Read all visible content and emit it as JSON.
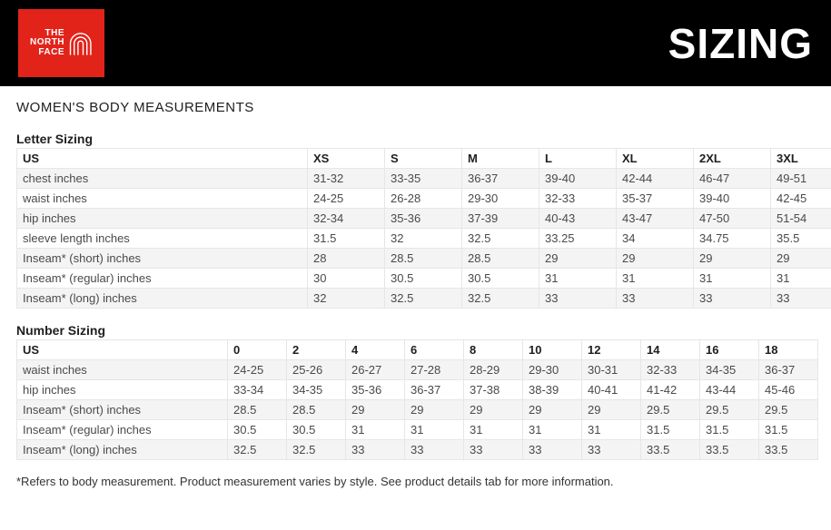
{
  "header": {
    "logo_line1": "THE",
    "logo_line2": "NORTH",
    "logo_line3": "FACE",
    "title": "SIZING",
    "logo_bg": "#e2231a",
    "header_bg": "#000000"
  },
  "section_title": "WOMEN'S BODY MEASUREMENTS",
  "letter_sizing": {
    "title": "Letter Sizing",
    "header_label": "US",
    "sizes": [
      "XS",
      "S",
      "M",
      "L",
      "XL",
      "2XL",
      "3XL"
    ],
    "rows": [
      {
        "label": "chest inches",
        "values": [
          "31-32",
          "33-35",
          "36-37",
          "39-40",
          "42-44",
          "46-47",
          "49-51"
        ]
      },
      {
        "label": "waist inches",
        "values": [
          "24-25",
          "26-28",
          "29-30",
          "32-33",
          "35-37",
          "39-40",
          "42-45"
        ]
      },
      {
        "label": "hip inches",
        "values": [
          "32-34",
          "35-36",
          "37-39",
          "40-43",
          "43-47",
          "47-50",
          "51-54"
        ]
      },
      {
        "label": "sleeve length inches",
        "values": [
          "31.5",
          "32",
          "32.5",
          "33.25",
          "34",
          "34.75",
          "35.5"
        ]
      },
      {
        "label": "Inseam* (short) inches",
        "values": [
          "28",
          "28.5",
          "28.5",
          "29",
          "29",
          "29",
          "29"
        ]
      },
      {
        "label": "Inseam* (regular) inches",
        "values": [
          "30",
          "30.5",
          "30.5",
          "31",
          "31",
          "31",
          "31"
        ]
      },
      {
        "label": "Inseam* (long) inches",
        "values": [
          "32",
          "32.5",
          "32.5",
          "33",
          "33",
          "33",
          "33"
        ]
      }
    ]
  },
  "number_sizing": {
    "title": "Number Sizing",
    "header_label": "US",
    "sizes": [
      "0",
      "2",
      "4",
      "6",
      "8",
      "10",
      "12",
      "14",
      "16",
      "18"
    ],
    "rows": [
      {
        "label": "waist inches",
        "values": [
          "24-25",
          "25-26",
          "26-27",
          "27-28",
          "28-29",
          "29-30",
          "30-31",
          "32-33",
          "34-35",
          "36-37"
        ]
      },
      {
        "label": "hip inches",
        "values": [
          "33-34",
          "34-35",
          "35-36",
          "36-37",
          "37-38",
          "38-39",
          "40-41",
          "41-42",
          "43-44",
          "45-46"
        ]
      },
      {
        "label": "Inseam* (short) inches",
        "values": [
          "28.5",
          "28.5",
          "29",
          "29",
          "29",
          "29",
          "29",
          "29.5",
          "29.5",
          "29.5"
        ]
      },
      {
        "label": "Inseam* (regular) inches",
        "values": [
          "30.5",
          "30.5",
          "31",
          "31",
          "31",
          "31",
          "31",
          "31.5",
          "31.5",
          "31.5"
        ]
      },
      {
        "label": "Inseam* (long) inches",
        "values": [
          "32.5",
          "32.5",
          "33",
          "33",
          "33",
          "33",
          "33",
          "33.5",
          "33.5",
          "33.5"
        ]
      }
    ]
  },
  "footnote": "*Refers to body measurement.  Product measurement varies by style.  See product details tab for more information.",
  "style": {
    "row_odd_bg": "#f4f4f4",
    "row_even_bg": "#ffffff",
    "border_color": "#e6e6e6",
    "body_font_size": 13,
    "section_title_size": 15,
    "sub_title_size": 14
  }
}
